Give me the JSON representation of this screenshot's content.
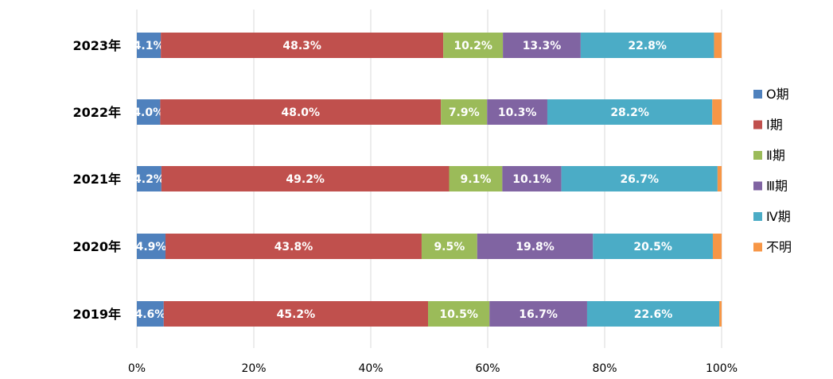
{
  "chart_data": {
    "type": "bar",
    "orientation": "horizontal",
    "stacked": true,
    "normalized_percent": true,
    "categories": [
      "2023年",
      "2022年",
      "2021年",
      "2020年",
      "2019年"
    ],
    "series": [
      {
        "name": "O期",
        "color": "#4f81bd",
        "values": [
          4.1,
          4.0,
          4.2,
          4.9,
          4.6
        ],
        "labels": [
          "4.1%",
          "4.0%",
          "4.2%",
          "4.9%",
          "4.6%"
        ]
      },
      {
        "name": "Ⅰ期",
        "color": "#c0504d",
        "values": [
          48.3,
          48.0,
          49.2,
          43.8,
          45.2
        ],
        "labels": [
          "48.3%",
          "48.0%",
          "49.2%",
          "43.8%",
          "45.2%"
        ]
      },
      {
        "name": "Ⅱ期",
        "color": "#9bbb59",
        "values": [
          10.2,
          7.9,
          9.1,
          9.5,
          10.5
        ],
        "labels": [
          "10.2%",
          "7.9%",
          "9.1%",
          "9.5%",
          "10.5%"
        ]
      },
      {
        "name": "Ⅲ期",
        "color": "#8064a2",
        "values": [
          13.3,
          10.3,
          10.1,
          19.8,
          16.7
        ],
        "labels": [
          "13.3%",
          "10.3%",
          "10.1%",
          "19.8%",
          "16.7%"
        ]
      },
      {
        "name": "Ⅳ期",
        "color": "#4bacc6",
        "values": [
          22.8,
          28.2,
          26.7,
          20.5,
          22.6
        ],
        "labels": [
          "22.8%",
          "28.2%",
          "26.7%",
          "20.5%",
          "22.6%"
        ]
      },
      {
        "name": "不明",
        "color": "#f79646",
        "values": [
          1.3,
          1.6,
          0.7,
          1.5,
          0.4
        ],
        "labels": [
          "",
          "",
          "",
          "",
          ""
        ]
      }
    ],
    "xlim": [
      0,
      100
    ],
    "xticks": [
      "0%",
      "20%",
      "40%",
      "60%",
      "80%",
      "100%"
    ],
    "grid": true,
    "legend": "right",
    "title": "",
    "xlabel": "",
    "ylabel": ""
  }
}
